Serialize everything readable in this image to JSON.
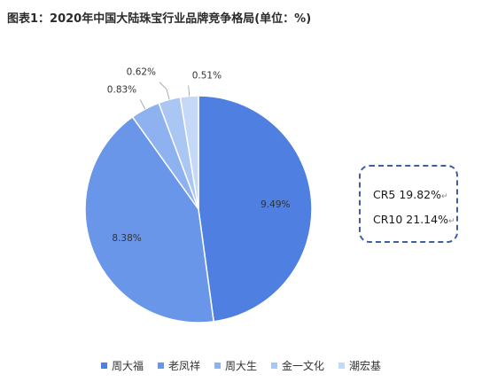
{
  "title": "图表1：2020年中国大陆珠宝行业品牌竞争格局(单位：%)",
  "chart_data": {
    "type": "pie",
    "title": "图表1：2020年中国大陆珠宝行业品牌竞争格局(单位：%)",
    "legend_position": "bottom",
    "slices": [
      {
        "name": "周大福",
        "value": 9.49,
        "label": "9.49%",
        "color": "#4f7fe0"
      },
      {
        "name": "老凤祥",
        "value": 8.38,
        "label": "8.38%",
        "color": "#6a96ea"
      },
      {
        "name": "周大生",
        "value": 0.83,
        "label": "0.83%",
        "color": "#8db2ef"
      },
      {
        "name": "金一文化",
        "value": 0.62,
        "label": "0.62%",
        "color": "#aac6f3"
      },
      {
        "name": "潮宏基",
        "value": 0.51,
        "label": "0.51%",
        "color": "#c5d8f7"
      }
    ]
  },
  "cr_box": {
    "cr5": "CR5 19.82%",
    "cr10": "CR10 21.14%",
    "mark": "↵"
  }
}
